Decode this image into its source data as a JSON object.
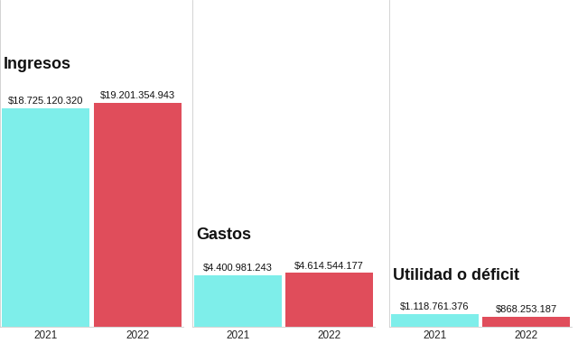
{
  "chart_data": [
    {
      "type": "bar",
      "title": "Ingresos",
      "categories": [
        "2021",
        "2022"
      ],
      "values": [
        18725120320,
        19201354943
      ],
      "value_labels": [
        "$18.725.120.320",
        "$19.201.354.943"
      ],
      "colors": [
        "#7eeeea",
        "#e04d5b"
      ],
      "ylim": [
        0,
        28000000000
      ],
      "data_labels": true,
      "tick_labels": "x"
    },
    {
      "type": "bar",
      "title": "Gastos",
      "categories": [
        "2021",
        "2022"
      ],
      "values": [
        4400981243,
        4614544177
      ],
      "value_labels": [
        "$4.400.981.243",
        "$4.614.544.177"
      ],
      "colors": [
        "#7eeeea",
        "#e04d5b"
      ],
      "ylim": [
        0,
        28000000000
      ],
      "data_labels": true,
      "tick_labels": "x"
    },
    {
      "type": "bar",
      "title": "Utilidad o déficit",
      "categories": [
        "2021",
        "2022"
      ],
      "values": [
        1118761376,
        868253187
      ],
      "value_labels": [
        "$1.118.761.376",
        "$868.253.187"
      ],
      "colors": [
        "#7eeeea",
        "#e04d5b"
      ],
      "ylim": [
        0,
        28000000000
      ],
      "data_labels": true,
      "tick_labels": "x"
    }
  ]
}
